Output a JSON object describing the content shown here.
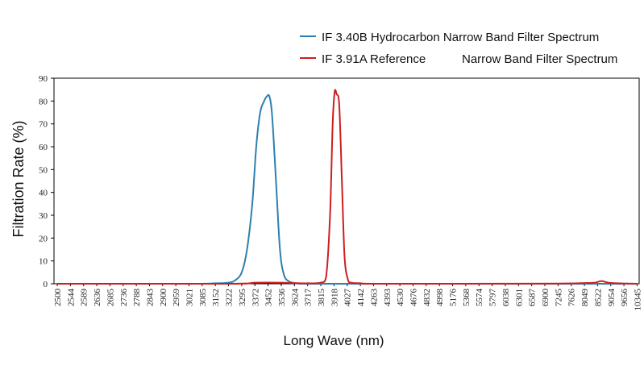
{
  "chart_data": {
    "type": "line",
    "title": "",
    "xlabel": "Long Wave (nm)",
    "ylabel": "Filtration Rate (%)",
    "ylim": [
      0,
      90
    ],
    "y_ticks": [
      0,
      10,
      20,
      30,
      40,
      50,
      60,
      70,
      80,
      90
    ],
    "x_tick_labels": [
      "2500",
      "2544",
      "2589",
      "2636",
      "2685",
      "2736",
      "2788",
      "2843",
      "2900",
      "2959",
      "3021",
      "3085",
      "3152",
      "3222",
      "3295",
      "3372",
      "3452",
      "3536",
      "3624",
      "3717",
      "3815",
      "3918",
      "4027",
      "4142",
      "4263",
      "4393",
      "4530",
      "4676",
      "4832",
      "4998",
      "5176",
      "5368",
      "5574",
      "5797",
      "6038",
      "6301",
      "6587",
      "6900",
      "7245",
      "7626",
      "8049",
      "8522",
      "9054",
      "9656",
      "10345"
    ],
    "x_axis_note": "categorical tick labels, nonlinear wavelength axis; series x values are tick indices",
    "grid": false,
    "legend_position": "top-right",
    "series": [
      {
        "name": "IF 3.40B Hydrocarbon Narrow Band Filter Spectrum",
        "color": "#2e7fb0",
        "x": [
          0,
          10,
          12,
          13,
          13.5,
          14,
          14.4,
          14.8,
          15.1,
          15.4,
          15.7,
          15.9,
          16.1,
          16.3,
          16.6,
          16.9,
          17.2,
          17.6,
          18.2,
          19,
          25,
          44
        ],
        "y": [
          0,
          0,
          0.2,
          0.5,
          1.5,
          5,
          15,
          35,
          60,
          75,
          80,
          82,
          82,
          74,
          45,
          15,
          4,
          1,
          0.2,
          0,
          0,
          0
        ]
      },
      {
        "name": "IF 3.91A Reference",
        "name_suffix": "Narrow Band Filter Spectrum",
        "color": "#cc1f1f",
        "x": [
          0,
          13,
          15,
          17,
          18,
          19,
          20,
          20.4,
          20.7,
          20.9,
          21.05,
          21.2,
          21.4,
          21.6,
          21.8,
          22.05,
          22.3,
          23,
          24,
          30,
          38,
          40,
          40.8,
          41.3,
          41.8,
          42.5,
          44
        ],
        "y": [
          0,
          0,
          0.5,
          0.5,
          0.3,
          0.2,
          0.5,
          3,
          30,
          70,
          84,
          83,
          78,
          45,
          12,
          2,
          0.5,
          0.2,
          0,
          0,
          0.1,
          0.3,
          0.5,
          1.2,
          0.5,
          0.2,
          0
        ]
      }
    ]
  }
}
